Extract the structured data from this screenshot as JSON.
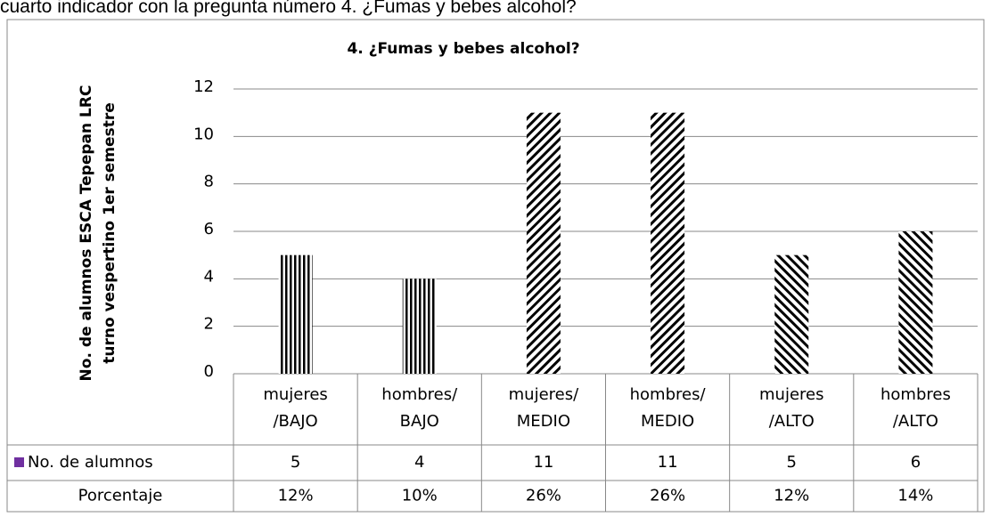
{
  "caption": "cuarto indicador con la pregunta número 4. ¿Fumas y bebes alcohol?",
  "chart_data": {
    "type": "bar",
    "title": "4. ¿Fumas y bebes alcohol?",
    "y_label": [
      "No. de alumnos ESCA Tepepan LRC",
      "turno vespertino 1er  semestre"
    ],
    "categories": [
      [
        "mujeres",
        "/BAJO"
      ],
      [
        "hombres/",
        "BAJO"
      ],
      [
        "mujeres/",
        "MEDIO"
      ],
      [
        "hombres/",
        "MEDIO"
      ],
      [
        "mujeres",
        "/ALTO"
      ],
      [
        "hombres",
        "/ALTO"
      ]
    ],
    "series": [
      {
        "name": "No. de alumnos",
        "color": "#7030a0",
        "values": [
          5,
          4,
          11,
          11,
          5,
          6
        ]
      }
    ],
    "patterns": [
      "vertical",
      "vertical",
      "forward-diagonal",
      "forward-diagonal",
      "back-diagonal",
      "back-diagonal"
    ],
    "percent": {
      "name": "Porcentaje",
      "values": [
        12,
        10,
        26,
        26,
        12,
        14
      ],
      "value_labels": [
        "12%",
        "10%",
        "26%",
        "26%",
        "12%",
        "14%"
      ]
    },
    "ylim": [
      0,
      12
    ],
    "yticks": [
      0,
      2,
      4,
      6,
      8,
      10,
      12
    ],
    "grid": true
  }
}
